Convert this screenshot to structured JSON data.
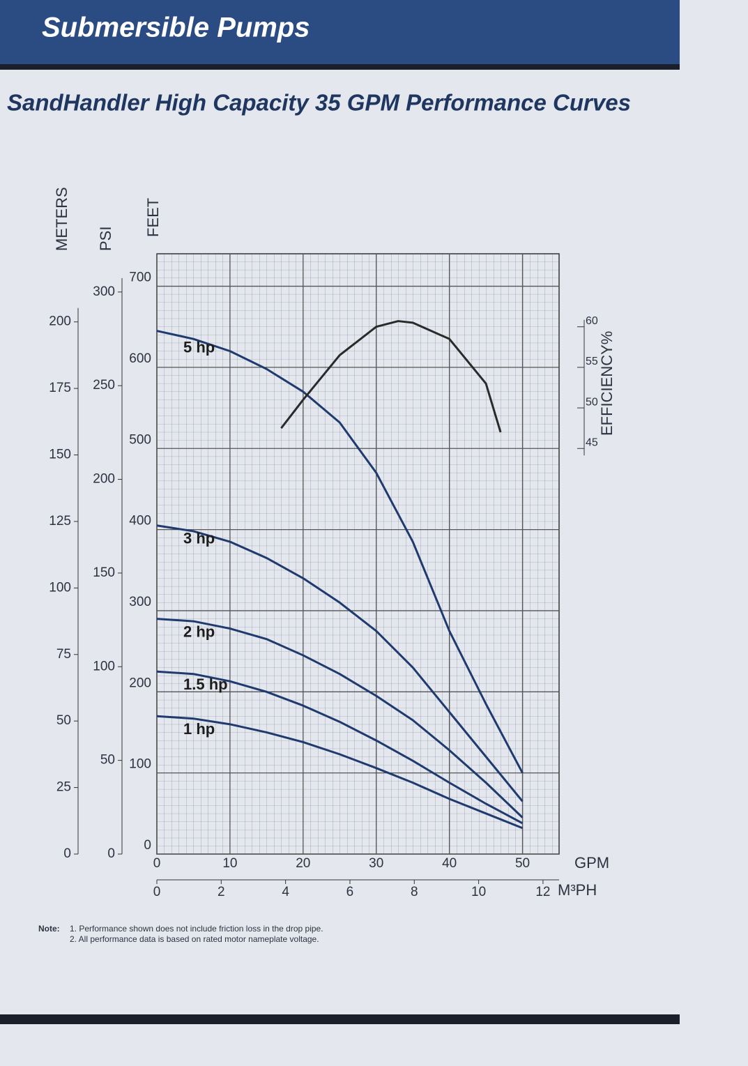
{
  "header": {
    "banner": "Submersible Pumps"
  },
  "chart_data": {
    "type": "line",
    "title": "SandHandler High Capacity 35 GPM Performance Curves",
    "x_label": "GPM",
    "y_label": "FEET",
    "y2_label": "EFFICIENCY%",
    "x": [
      0,
      5,
      10,
      15,
      20,
      25,
      30,
      35,
      40,
      45,
      50
    ],
    "xlim": [
      0,
      55
    ],
    "xticks": [
      0,
      10,
      20,
      30,
      40,
      50
    ],
    "ylim": [
      0,
      740
    ],
    "yticks": [
      0,
      100,
      200,
      300,
      400,
      500,
      600,
      700
    ],
    "y2lim": [
      -5,
      69
    ],
    "y2ticks": [
      45,
      50,
      55,
      60
    ],
    "grid": true,
    "series": [
      {
        "name": "5 hp",
        "color": "#1f3a6e",
        "values": [
          645,
          635,
          620,
          598,
          570,
          532,
          470,
          385,
          275,
          185,
          100
        ]
      },
      {
        "name": "3 hp",
        "color": "#1f3a6e",
        "values": [
          405,
          398,
          385,
          365,
          340,
          310,
          275,
          230,
          175,
          120,
          65
        ]
      },
      {
        "name": "2 hp",
        "color": "#1f3a6e",
        "values": [
          290,
          287,
          278,
          265,
          245,
          222,
          195,
          165,
          128,
          88,
          45
        ]
      },
      {
        "name": "1.5 hp",
        "color": "#1f3a6e",
        "values": [
          225,
          222,
          213,
          200,
          183,
          163,
          140,
          115,
          88,
          62,
          38
        ]
      },
      {
        "name": "1 hp",
        "color": "#1f3a6e",
        "values": [
          170,
          167,
          160,
          150,
          138,
          123,
          106,
          88,
          68,
          50,
          32
        ]
      },
      {
        "name": "EFFICIENCY%",
        "color": "#2a2a2a",
        "axis": "y2",
        "x": [
          17,
          20,
          25,
          30,
          33,
          35,
          40,
          45,
          47
        ],
        "values": [
          47.5,
          51,
          56.5,
          60,
          60.7,
          60.5,
          58.5,
          53,
          47
        ]
      }
    ],
    "extra_axes": [
      {
        "label": "METERS",
        "side": "left",
        "lim": [
          0,
          225.6
        ],
        "ticks": [
          0,
          25,
          50,
          75,
          100,
          125,
          150,
          175,
          200
        ]
      },
      {
        "label": "PSI",
        "side": "left",
        "lim": [
          0,
          320.4
        ],
        "ticks": [
          0,
          50,
          100,
          150,
          200,
          250,
          300
        ]
      },
      {
        "label": "M³PH",
        "side": "bottom",
        "lim": [
          0,
          12.5
        ],
        "ticks": [
          0,
          2,
          4,
          6,
          8,
          10,
          12
        ]
      }
    ]
  },
  "notes": {
    "heading": "Note:",
    "items": [
      "1. Performance shown does not include friction loss in the drop pipe.",
      "2. All performance data is based on rated motor nameplate voltage."
    ]
  }
}
